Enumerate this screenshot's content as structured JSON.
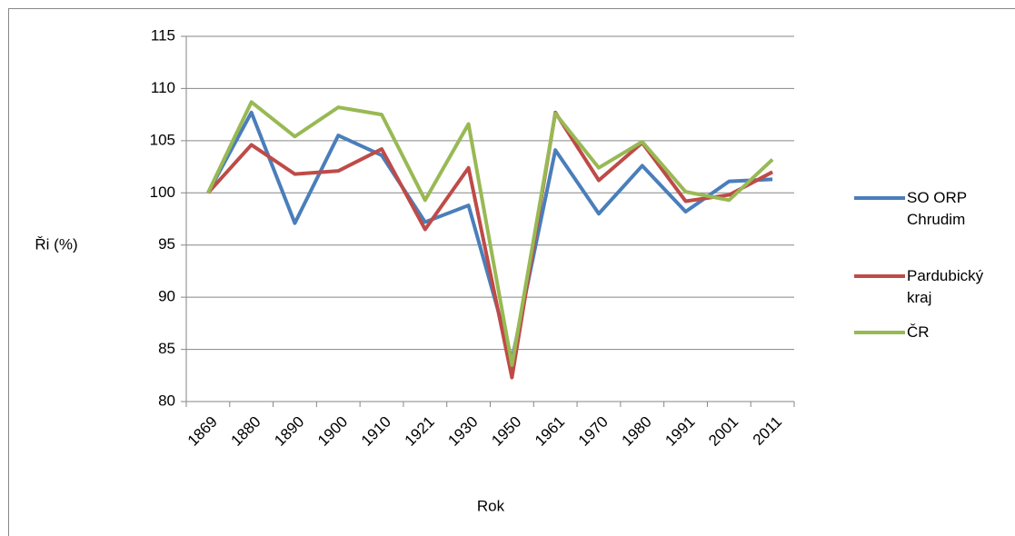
{
  "chart_data": {
    "type": "line",
    "x_label": "Rok",
    "y_label": "Ři (%)",
    "categories": [
      "1869",
      "1880",
      "1890",
      "1900",
      "1910",
      "1921",
      "1930",
      "1950",
      "1961",
      "1970",
      "1980",
      "1991",
      "2001",
      "2011"
    ],
    "series": [
      {
        "name": "SO ORP Chrudim",
        "color": "#4a7ebb",
        "values": [
          100,
          107.7,
          97.1,
          105.5,
          103.6,
          97.2,
          98.8,
          84.0,
          104.1,
          98.0,
          102.6,
          98.2,
          101.1,
          101.3
        ]
      },
      {
        "name": "Pardubický kraj",
        "color": "#be4b48",
        "values": [
          100,
          104.6,
          101.8,
          102.1,
          104.2,
          96.5,
          102.4,
          82.3,
          107.7,
          101.2,
          104.8,
          99.2,
          99.8,
          102.0
        ]
      },
      {
        "name": "ČR",
        "color": "#98b954",
        "values": [
          100,
          108.7,
          105.4,
          108.2,
          107.5,
          99.3,
          106.6,
          83.5,
          107.6,
          102.4,
          104.9,
          100.1,
          99.3,
          103.2
        ]
      }
    ],
    "ylim": [
      80,
      115
    ],
    "yticks": [
      80,
      85,
      90,
      95,
      100,
      105,
      110,
      115
    ],
    "grid": true,
    "legend": "right"
  }
}
